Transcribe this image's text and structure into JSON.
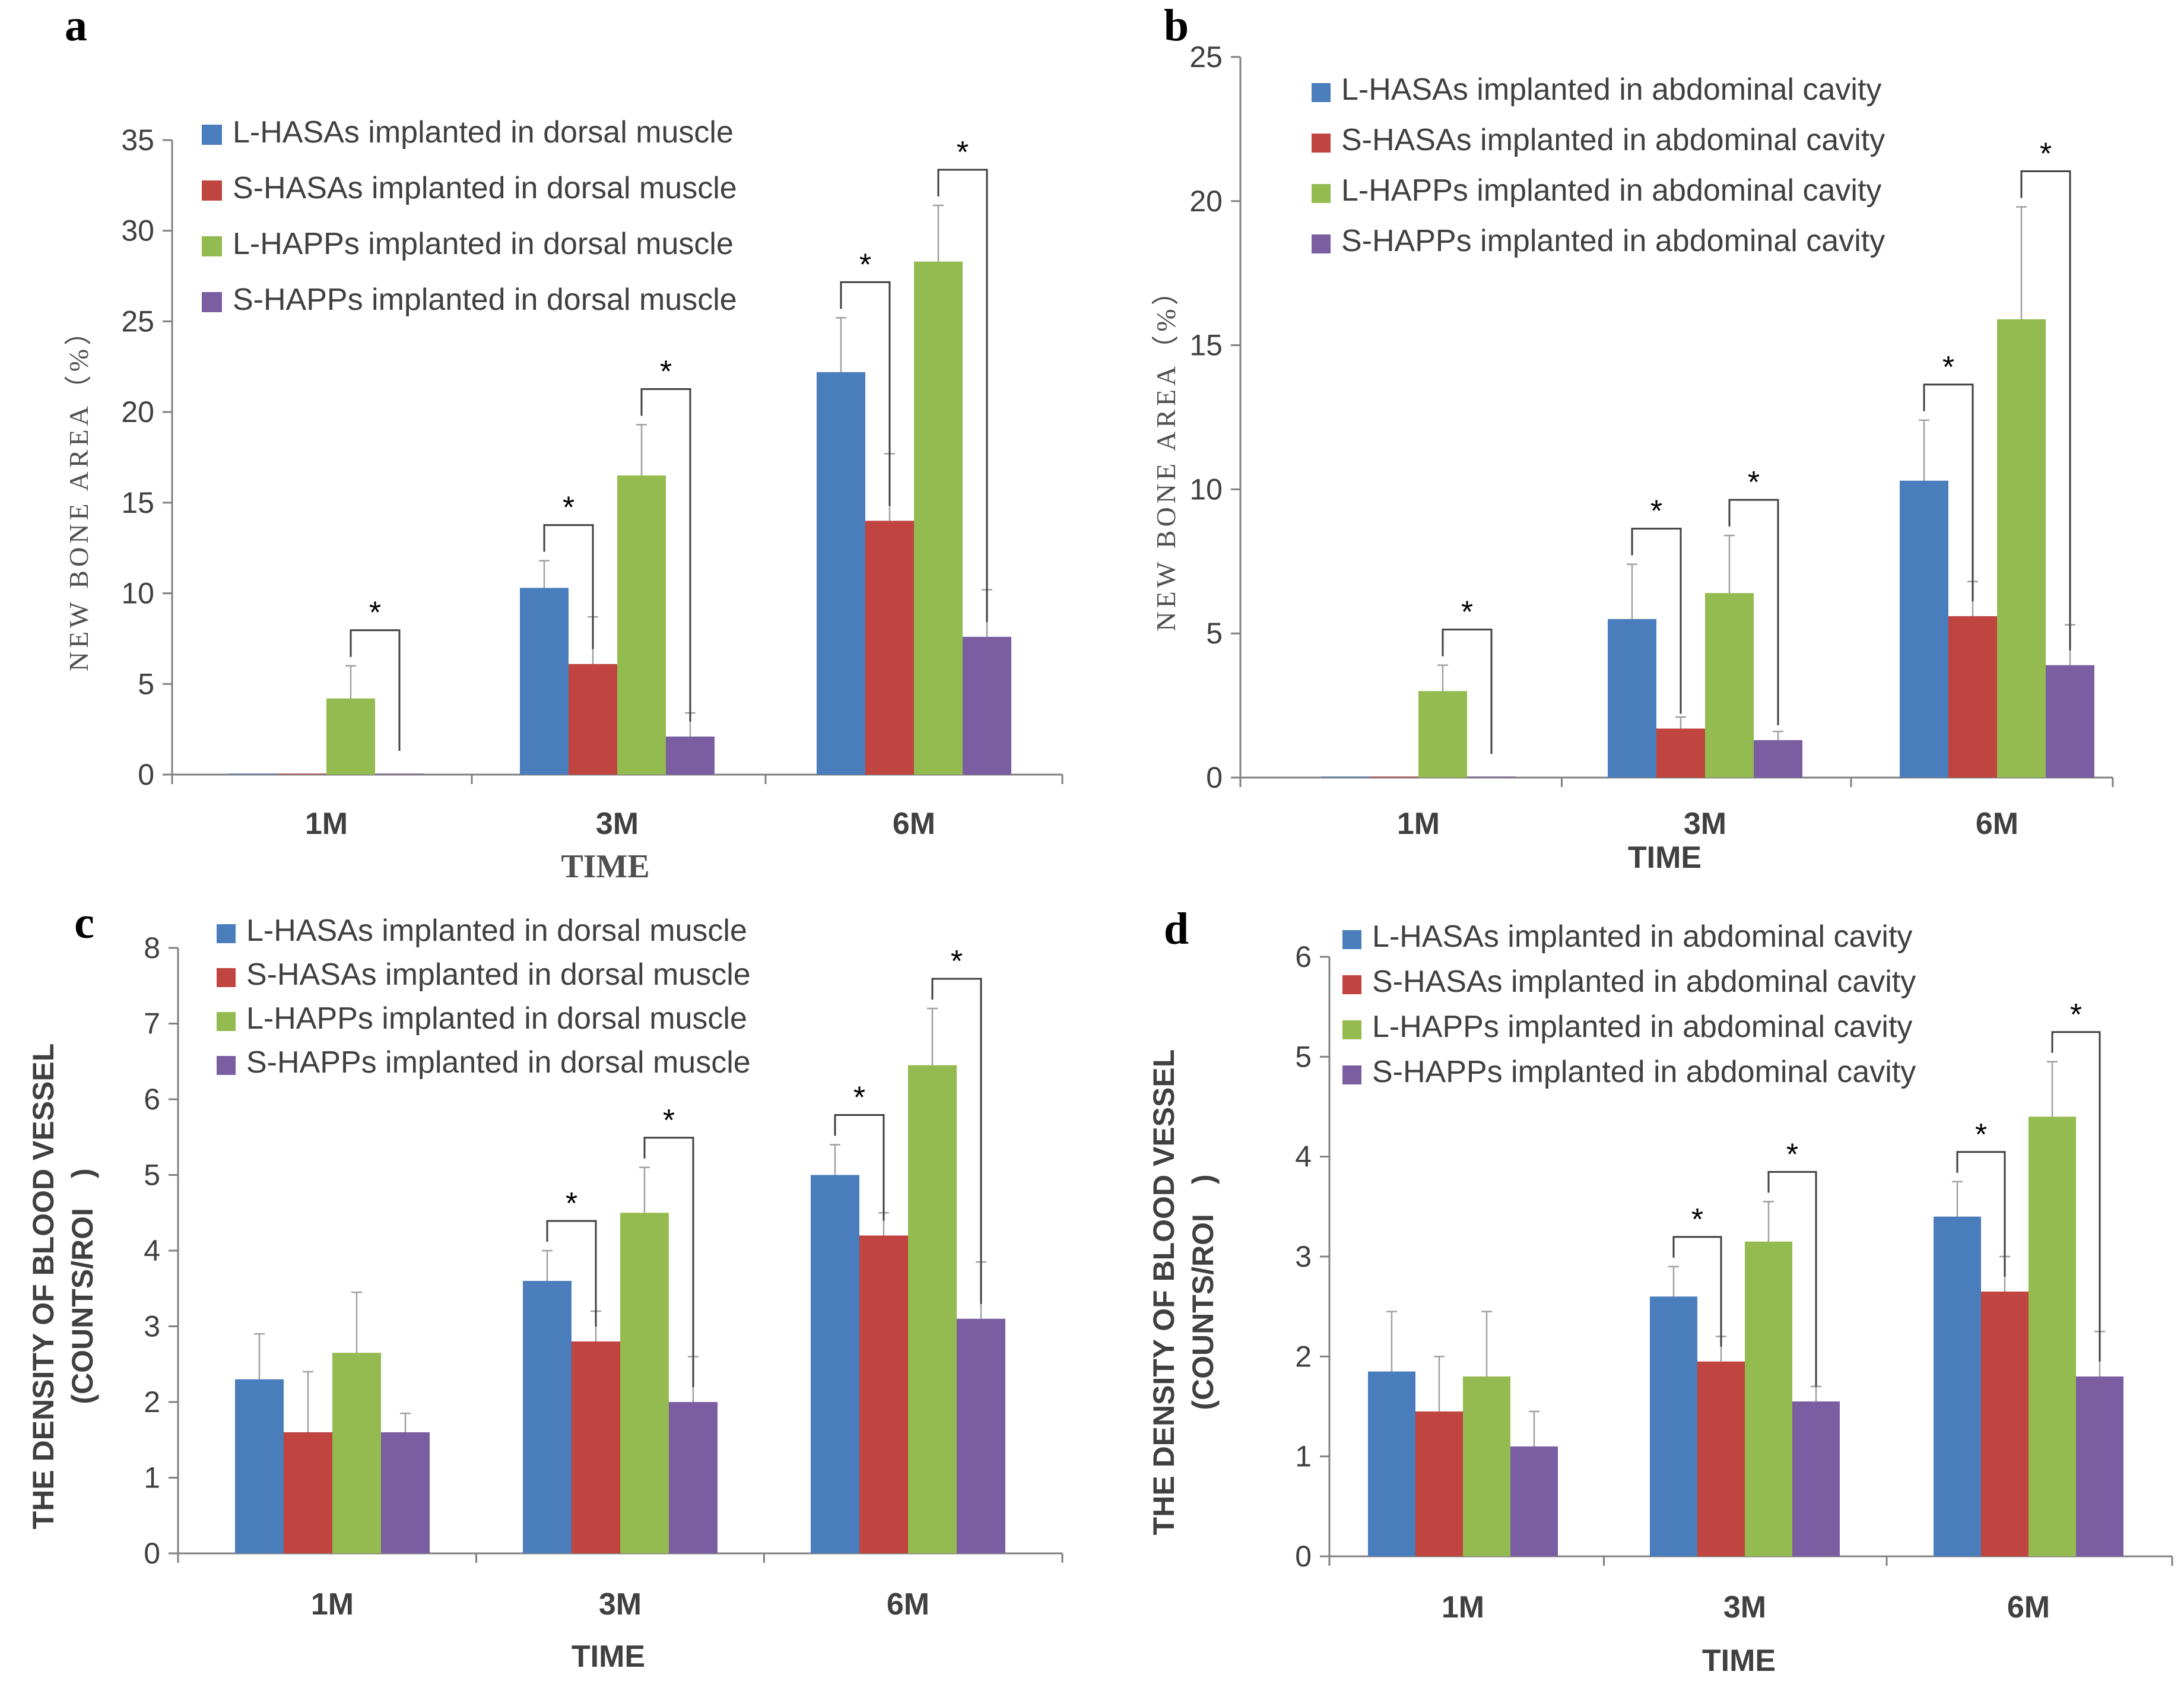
{
  "colors": {
    "L-HASAs": "#4a7dbc",
    "S-HASAs": "#c0443f",
    "L-HAPPs": "#94bb4f",
    "S-HAPPs": "#7b5ea2",
    "axis": "#808080",
    "bracket": "#404040"
  },
  "chart_data": [
    {
      "panel": "a",
      "type": "bar",
      "title": "",
      "xlabel": "TIME",
      "ylabel": "NEW BONE AREA（%）",
      "categories": [
        "1M",
        "3M",
        "6M"
      ],
      "ylim": [
        0,
        35
      ],
      "yticks": [
        0,
        5,
        10,
        15,
        20,
        25,
        30,
        35
      ],
      "legend_position": "top-left",
      "series": [
        {
          "name": "L-HASAs implanted in dorsal muscle",
          "values": [
            0,
            10.3,
            22.2
          ],
          "errors": [
            0,
            1.5,
            3.0
          ]
        },
        {
          "name": "S-HASAs implanted in dorsal muscle",
          "values": [
            0,
            6.1,
            14.0
          ],
          "errors": [
            0,
            2.6,
            3.7
          ]
        },
        {
          "name": "L-HAPPs implanted in dorsal muscle",
          "values": [
            4.2,
            16.5,
            28.3
          ],
          "errors": [
            1.8,
            2.8,
            3.1
          ]
        },
        {
          "name": "S-HAPPs implanted in dorsal muscle",
          "values": [
            0,
            2.1,
            7.6
          ],
          "errors": [
            0,
            1.3,
            2.6
          ]
        }
      ],
      "significance": [
        {
          "label": "*",
          "category": 0,
          "from_series": 2,
          "to_series": 3
        },
        {
          "label": "*",
          "category": 1,
          "from_series": 0,
          "to_series": 1
        },
        {
          "label": "*",
          "category": 1,
          "from_series": 2,
          "to_series": 3
        },
        {
          "label": "*",
          "category": 2,
          "from_series": 0,
          "to_series": 1
        },
        {
          "label": "*",
          "category": 2,
          "from_series": 2,
          "to_series": 3
        }
      ]
    },
    {
      "panel": "b",
      "type": "bar",
      "title": "",
      "xlabel": "TIME",
      "ylabel": "NEW BONE AREA（%）",
      "categories": [
        "1M",
        "3M",
        "6M"
      ],
      "ylim": [
        0,
        25
      ],
      "yticks": [
        0,
        5,
        10,
        15,
        20,
        25
      ],
      "legend_position": "top-left",
      "series": [
        {
          "name": "L-HASAs implanted in abdominal cavity",
          "values": [
            0,
            5.5,
            10.3
          ],
          "errors": [
            0,
            1.9,
            2.1
          ]
        },
        {
          "name": "S-HASAs implanted in abdominal cavity",
          "values": [
            0,
            1.7,
            5.6
          ],
          "errors": [
            0,
            0.4,
            1.2
          ]
        },
        {
          "name": "L-HAPPs implanted in abdominal cavity",
          "values": [
            3.0,
            6.4,
            15.9
          ],
          "errors": [
            0.9,
            2.0,
            3.9
          ]
        },
        {
          "name": "S-HAPPs implanted in abdominal cavity",
          "values": [
            0,
            1.3,
            3.9
          ],
          "errors": [
            0,
            0.3,
            1.4
          ]
        }
      ],
      "significance": [
        {
          "label": "*",
          "category": 0,
          "from_series": 2,
          "to_series": 3
        },
        {
          "label": "*",
          "category": 1,
          "from_series": 0,
          "to_series": 1
        },
        {
          "label": "*",
          "category": 1,
          "from_series": 2,
          "to_series": 3
        },
        {
          "label": "*",
          "category": 2,
          "from_series": 0,
          "to_series": 1
        },
        {
          "label": "*",
          "category": 2,
          "from_series": 2,
          "to_series": 3
        }
      ]
    },
    {
      "panel": "c",
      "type": "bar",
      "title": "",
      "xlabel": "TIME",
      "ylabel": "THE DENSITY OF BLOOD VESSEL",
      "ylabel2": "(COUNTS/ROI　)",
      "categories": [
        "1M",
        "3M",
        "6M"
      ],
      "ylim": [
        0,
        8
      ],
      "yticks": [
        0,
        1,
        2,
        3,
        4,
        5,
        6,
        7,
        8
      ],
      "legend_position": "top-left",
      "series": [
        {
          "name": "L-HASAs implanted in dorsal muscle",
          "values": [
            2.3,
            3.6,
            5.0
          ],
          "errors": [
            0.6,
            0.4,
            0.4
          ]
        },
        {
          "name": "S-HASAs implanted in dorsal muscle",
          "values": [
            1.6,
            2.8,
            4.2
          ],
          "errors": [
            0.8,
            0.4,
            0.3
          ]
        },
        {
          "name": "L-HAPPs implanted in dorsal muscle",
          "values": [
            2.65,
            4.5,
            6.45
          ],
          "errors": [
            0.8,
            0.6,
            0.75
          ]
        },
        {
          "name": "S-HAPPs implanted in dorsal muscle",
          "values": [
            1.6,
            2.0,
            3.1
          ],
          "errors": [
            0.25,
            0.6,
            0.75
          ]
        }
      ],
      "significance": [
        {
          "label": "*",
          "category": 1,
          "from_series": 0,
          "to_series": 1
        },
        {
          "label": "*",
          "category": 1,
          "from_series": 2,
          "to_series": 3
        },
        {
          "label": "*",
          "category": 2,
          "from_series": 0,
          "to_series": 1
        },
        {
          "label": "*",
          "category": 2,
          "from_series": 2,
          "to_series": 3
        }
      ]
    },
    {
      "panel": "d",
      "type": "bar",
      "title": "",
      "xlabel": "TIME",
      "ylabel": "THE DENSITY OF BLOOD VESSEL",
      "ylabel2": "(COUNTS/ROI　)",
      "categories": [
        "1M",
        "3M",
        "6M"
      ],
      "ylim": [
        0,
        6
      ],
      "yticks": [
        0,
        1,
        2,
        3,
        4,
        5,
        6
      ],
      "legend_position": "top-left",
      "series": [
        {
          "name": "L-HASAs implanted in abdominal cavity",
          "values": [
            1.85,
            2.6,
            3.4
          ],
          "errors": [
            0.6,
            0.3,
            0.35
          ]
        },
        {
          "name": "S-HASAs implanted in abdominal cavity",
          "values": [
            1.45,
            1.95,
            2.65
          ],
          "errors": [
            0.55,
            0.25,
            0.35
          ]
        },
        {
          "name": "L-HAPPs implanted in abdominal cavity",
          "values": [
            1.8,
            3.15,
            4.4
          ],
          "errors": [
            0.65,
            0.4,
            0.55
          ]
        },
        {
          "name": "S-HAPPs implanted in abdominal cavity",
          "values": [
            1.1,
            1.55,
            1.8
          ],
          "errors": [
            0.35,
            0.15,
            0.45
          ]
        }
      ],
      "significance": [
        {
          "label": "*",
          "category": 1,
          "from_series": 0,
          "to_series": 1
        },
        {
          "label": "*",
          "category": 1,
          "from_series": 2,
          "to_series": 3
        },
        {
          "label": "*",
          "category": 2,
          "from_series": 0,
          "to_series": 1
        },
        {
          "label": "*",
          "category": 2,
          "from_series": 2,
          "to_series": 3
        }
      ]
    }
  ]
}
